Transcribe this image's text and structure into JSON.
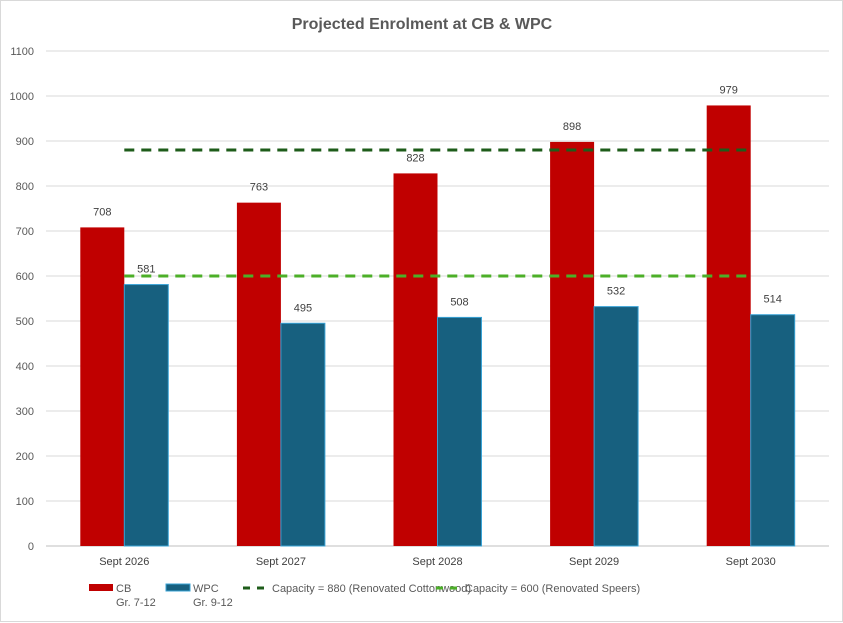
{
  "chart_data": {
    "type": "bar",
    "title": "Projected Enrolment at CB & WPC",
    "categories": [
      "Sept 2026",
      "Sept 2027",
      "Sept 2028",
      "Sept 2029",
      "Sept 2030"
    ],
    "series": [
      {
        "name": "CB",
        "name_line2": "Gr. 7-12",
        "color": "#C00000",
        "values": [
          708,
          763,
          828,
          898,
          979
        ]
      },
      {
        "name": "WPC",
        "name_line2": "Gr. 9-12",
        "color": "#17607F",
        "values": [
          581,
          495,
          508,
          532,
          514
        ]
      }
    ],
    "reference_lines": [
      {
        "name": "Capacity = 880 (Renovated Cottonwood)",
        "value": 880,
        "color": "#1E5C1A",
        "style": "dashed"
      },
      {
        "name": "Capacity = 600 (Renovated Speers)",
        "value": 600,
        "color": "#4CAF28",
        "style": "dashed"
      }
    ],
    "ylim": [
      0,
      1100
    ],
    "yticks": [
      0,
      100,
      200,
      300,
      400,
      500,
      600,
      700,
      800,
      900,
      1000,
      1100
    ],
    "grid": true,
    "data_labels": true,
    "legend": "bottom",
    "xlabel": "",
    "ylabel": ""
  }
}
